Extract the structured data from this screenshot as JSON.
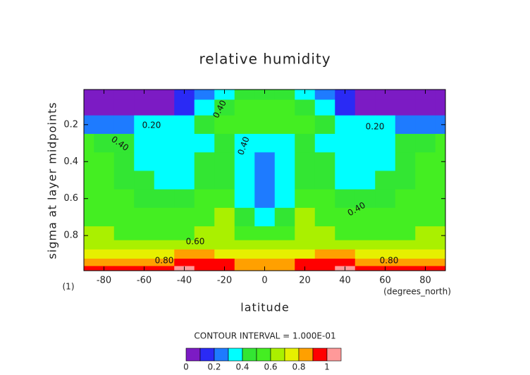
{
  "chart_data": {
    "type": "contour",
    "title": "relative humidity",
    "xlabel": "latitude",
    "ylabel": "sigma at layer midpoints",
    "x_units": "(degrees_north)",
    "y_units": "(1)",
    "contour_interval": "CONTOUR INTERVAL = 1.000E-01",
    "x": [
      -90,
      -80,
      -70,
      -60,
      -50,
      -40,
      -30,
      -20,
      -10,
      0,
      10,
      20,
      30,
      40,
      50,
      60,
      70,
      80,
      90
    ],
    "y": [
      0.03,
      0.1,
      0.2,
      0.3,
      0.4,
      0.5,
      0.6,
      0.7,
      0.8,
      0.85,
      0.9,
      0.95,
      0.98
    ],
    "z": [
      [
        0.05,
        0.05,
        0.05,
        0.05,
        0.08,
        0.15,
        0.25,
        0.35,
        0.45,
        0.45,
        0.45,
        0.35,
        0.25,
        0.15,
        0.08,
        0.05,
        0.05,
        0.05,
        0.05
      ],
      [
        0.05,
        0.05,
        0.05,
        0.05,
        0.06,
        0.15,
        0.3,
        0.42,
        0.55,
        0.55,
        0.55,
        0.42,
        0.3,
        0.15,
        0.06,
        0.05,
        0.05,
        0.05,
        0.05
      ],
      [
        0.22,
        0.22,
        0.25,
        0.3,
        0.35,
        0.38,
        0.42,
        0.5,
        0.52,
        0.5,
        0.52,
        0.5,
        0.42,
        0.38,
        0.35,
        0.3,
        0.25,
        0.22,
        0.22
      ],
      [
        0.5,
        0.45,
        0.4,
        0.36,
        0.34,
        0.34,
        0.38,
        0.42,
        0.38,
        0.3,
        0.38,
        0.42,
        0.38,
        0.34,
        0.34,
        0.36,
        0.4,
        0.45,
        0.5
      ],
      [
        0.55,
        0.5,
        0.45,
        0.38,
        0.34,
        0.34,
        0.42,
        0.45,
        0.32,
        0.22,
        0.32,
        0.45,
        0.42,
        0.34,
        0.34,
        0.38,
        0.45,
        0.5,
        0.55
      ],
      [
        0.55,
        0.55,
        0.48,
        0.4,
        0.35,
        0.36,
        0.45,
        0.48,
        0.35,
        0.22,
        0.35,
        0.48,
        0.45,
        0.36,
        0.35,
        0.4,
        0.48,
        0.55,
        0.55
      ],
      [
        0.55,
        0.55,
        0.5,
        0.45,
        0.42,
        0.45,
        0.5,
        0.52,
        0.38,
        0.25,
        0.38,
        0.52,
        0.5,
        0.45,
        0.42,
        0.45,
        0.5,
        0.55,
        0.55
      ],
      [
        0.58,
        0.55,
        0.55,
        0.5,
        0.5,
        0.5,
        0.55,
        0.6,
        0.45,
        0.38,
        0.45,
        0.6,
        0.55,
        0.5,
        0.5,
        0.5,
        0.55,
        0.55,
        0.58
      ],
      [
        0.62,
        0.6,
        0.58,
        0.58,
        0.58,
        0.58,
        0.6,
        0.62,
        0.55,
        0.52,
        0.55,
        0.62,
        0.6,
        0.58,
        0.58,
        0.58,
        0.58,
        0.6,
        0.62
      ],
      [
        0.68,
        0.65,
        0.64,
        0.64,
        0.64,
        0.64,
        0.65,
        0.66,
        0.62,
        0.6,
        0.62,
        0.66,
        0.65,
        0.64,
        0.64,
        0.64,
        0.64,
        0.65,
        0.68
      ],
      [
        0.78,
        0.75,
        0.75,
        0.76,
        0.78,
        0.8,
        0.8,
        0.78,
        0.72,
        0.72,
        0.72,
        0.78,
        0.8,
        0.8,
        0.78,
        0.76,
        0.75,
        0.75,
        0.78
      ],
      [
        0.88,
        0.85,
        0.85,
        0.86,
        0.88,
        0.9,
        0.92,
        0.9,
        0.85,
        0.82,
        0.85,
        0.9,
        0.92,
        0.9,
        0.88,
        0.86,
        0.85,
        0.85,
        0.88
      ],
      [
        0.94,
        0.93,
        0.93,
        0.94,
        0.96,
        1.01,
        0.95,
        0.93,
        0.85,
        0.85,
        0.85,
        0.93,
        0.95,
        1.01,
        0.96,
        0.94,
        0.93,
        0.93,
        0.94
      ]
    ],
    "xlim": [
      -90,
      90
    ],
    "ylim": [
      0.01,
      0.99
    ],
    "y_reversed": true,
    "xticks": [
      -80,
      -60,
      -40,
      -20,
      0,
      20,
      40,
      60,
      80
    ],
    "yticks": [
      0.2,
      0.4,
      0.6,
      0.8
    ],
    "levels": [
      0,
      0.1,
      0.2,
      0.3,
      0.4,
      0.5,
      0.6,
      0.7,
      0.8,
      0.9,
      1
    ],
    "colors": [
      "#7c1bc4",
      "#2a2af5",
      "#1e7bff",
      "#00ffff",
      "#33e633",
      "#44ee22",
      "#aaf000",
      "#e6f000",
      "#ffa000",
      "#ff0000",
      "#ff9999"
    ],
    "colorbar_ticks": [
      0,
      0.2,
      0.4,
      0.6,
      0.8,
      1
    ],
    "contour_labels": [
      "0.40",
      "0.20",
      "0.40",
      "0.40",
      "0.20",
      "0.40",
      "0.60",
      "0.80",
      "0.80"
    ]
  }
}
